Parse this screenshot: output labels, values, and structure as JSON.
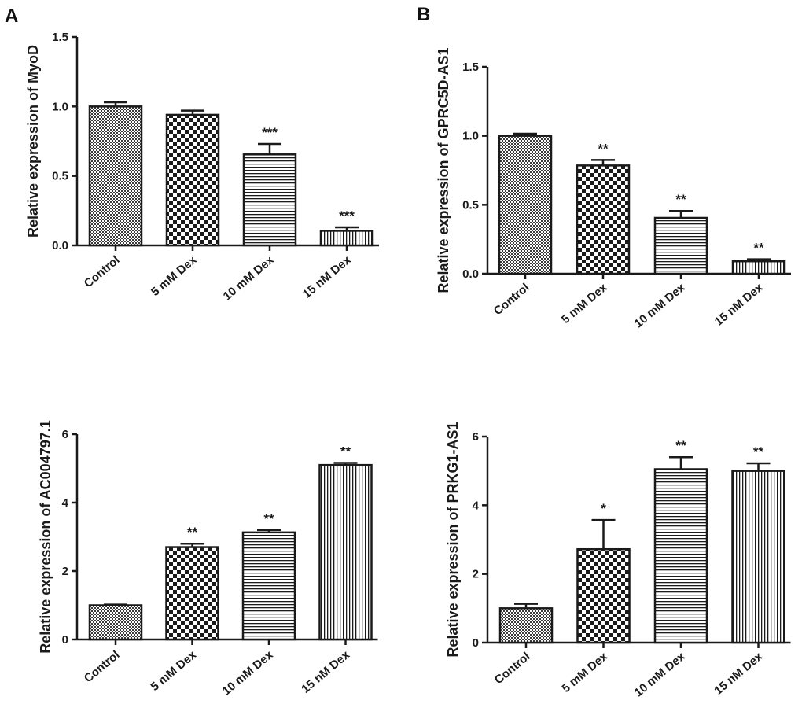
{
  "panel_letters": [
    "A",
    "B"
  ],
  "chart_data": [
    {
      "type": "bar",
      "panel": "A",
      "title": "",
      "xlabel": "",
      "ylabel": "Relative expression of MyoD",
      "categories": [
        "Control",
        "5 mM Dex",
        "10 mM Dex",
        "15 nM Dex"
      ],
      "values": [
        1.0,
        0.94,
        0.655,
        0.105
      ],
      "errors": [
        0.03,
        0.03,
        0.075,
        0.025
      ],
      "significance": [
        "",
        "",
        "***",
        "***"
      ],
      "patterns": [
        "dots",
        "checker",
        "hlines",
        "vlines"
      ],
      "ylim": [
        0,
        1.5
      ],
      "yticks": [
        0.0,
        0.5,
        1.0,
        1.5
      ],
      "ytick_labels": [
        "0.0",
        "0.5",
        "1.0",
        "1.5"
      ]
    },
    {
      "type": "bar",
      "panel": "B",
      "title": "",
      "xlabel": "",
      "ylabel": "Relative expression of GPRC5D-AS1",
      "categories": [
        "Control",
        "5 mM Dex",
        "10 mM Dex",
        "15 nM Dex"
      ],
      "values": [
        1.0,
        0.785,
        0.405,
        0.09
      ],
      "errors": [
        0.015,
        0.04,
        0.05,
        0.015
      ],
      "significance": [
        "",
        "**",
        "**",
        "**"
      ],
      "patterns": [
        "dots",
        "checker",
        "hlines",
        "vlines"
      ],
      "ylim": [
        0,
        1.5
      ],
      "yticks": [
        0.0,
        0.5,
        1.0,
        1.5
      ],
      "ytick_labels": [
        "0.0",
        "0.5",
        "1.0",
        "1.5"
      ]
    },
    {
      "type": "bar",
      "panel": "",
      "title": "",
      "xlabel": "",
      "ylabel": "Relative expression of AC004797.1",
      "categories": [
        "Control",
        "5 mM Dex",
        "10 mM Dex",
        "15 nM Dex"
      ],
      "values": [
        1.0,
        2.7,
        3.13,
        5.1
      ],
      "errors": [
        0.02,
        0.1,
        0.07,
        0.06
      ],
      "significance": [
        "",
        "**",
        "**",
        "**"
      ],
      "patterns": [
        "dots",
        "checker",
        "hlines",
        "vlines"
      ],
      "ylim": [
        0,
        6
      ],
      "yticks": [
        0,
        2,
        4,
        6
      ],
      "ytick_labels": [
        "0",
        "2",
        "4",
        "6"
      ]
    },
    {
      "type": "bar",
      "panel": "",
      "title": "",
      "xlabel": "",
      "ylabel": "Relative expression of PRKG1-AS1",
      "categories": [
        "Control",
        "5 mM Dex",
        "10 mM Dex",
        "15 nM Dex"
      ],
      "values": [
        1.0,
        2.72,
        5.05,
        5.0
      ],
      "errors": [
        0.13,
        0.85,
        0.35,
        0.22
      ],
      "significance": [
        "",
        "*",
        "**",
        "**"
      ],
      "patterns": [
        "dots",
        "checker",
        "hlines",
        "vlines"
      ],
      "ylim": [
        0,
        6
      ],
      "yticks": [
        0,
        2,
        4,
        6
      ],
      "ytick_labels": [
        "0",
        "2",
        "4",
        "6"
      ]
    }
  ]
}
